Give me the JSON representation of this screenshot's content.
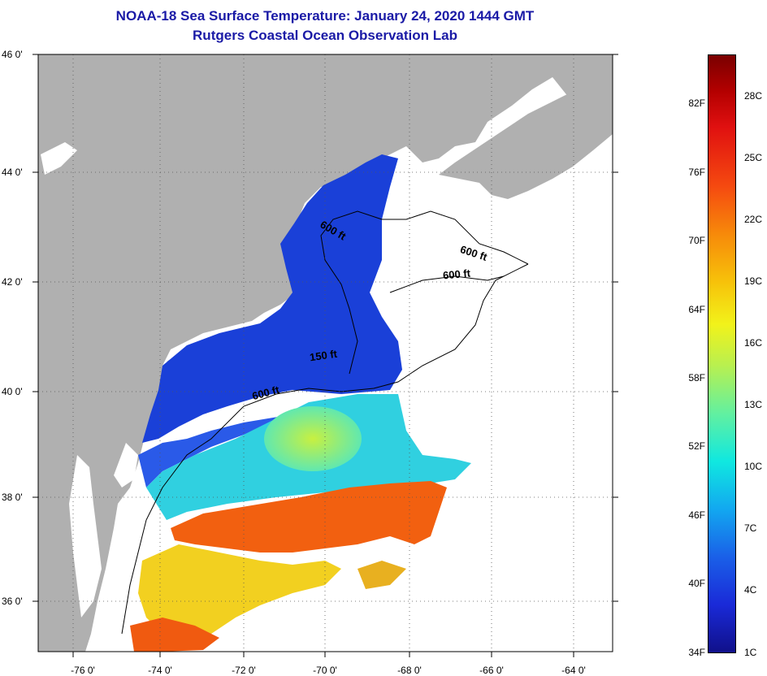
{
  "title_line1": "NOAA-18 Sea Surface Temperature:  January 24, 2020 1444 GMT",
  "title_line2": "Rutgers Coastal Ocean Observation Lab",
  "lat_labels": [
    "46 0'",
    "44 0'",
    "42 0'",
    "40 0'",
    "38 0'",
    "36 0'"
  ],
  "lon_labels": [
    "-76 0'",
    "-74 0'",
    "-72 0'",
    "-70 0'",
    "-68 0'",
    "-66 0'",
    "-64 0'"
  ],
  "depth_labels": [
    "600 ft",
    "600 ft",
    "600 ft",
    "150 ft",
    "600 ft"
  ],
  "colorbar": {
    "fahrenheit": [
      "82F",
      "76F",
      "70F",
      "64F",
      "58F",
      "52F",
      "46F",
      "40F",
      "34F"
    ],
    "celsius": [
      "28C",
      "25C",
      "22C",
      "19C",
      "16C",
      "13C",
      "10C",
      "7C",
      "4C",
      "1C"
    ]
  },
  "colors": {
    "land": "#b0b0b0",
    "title": "#1a1aa6"
  }
}
